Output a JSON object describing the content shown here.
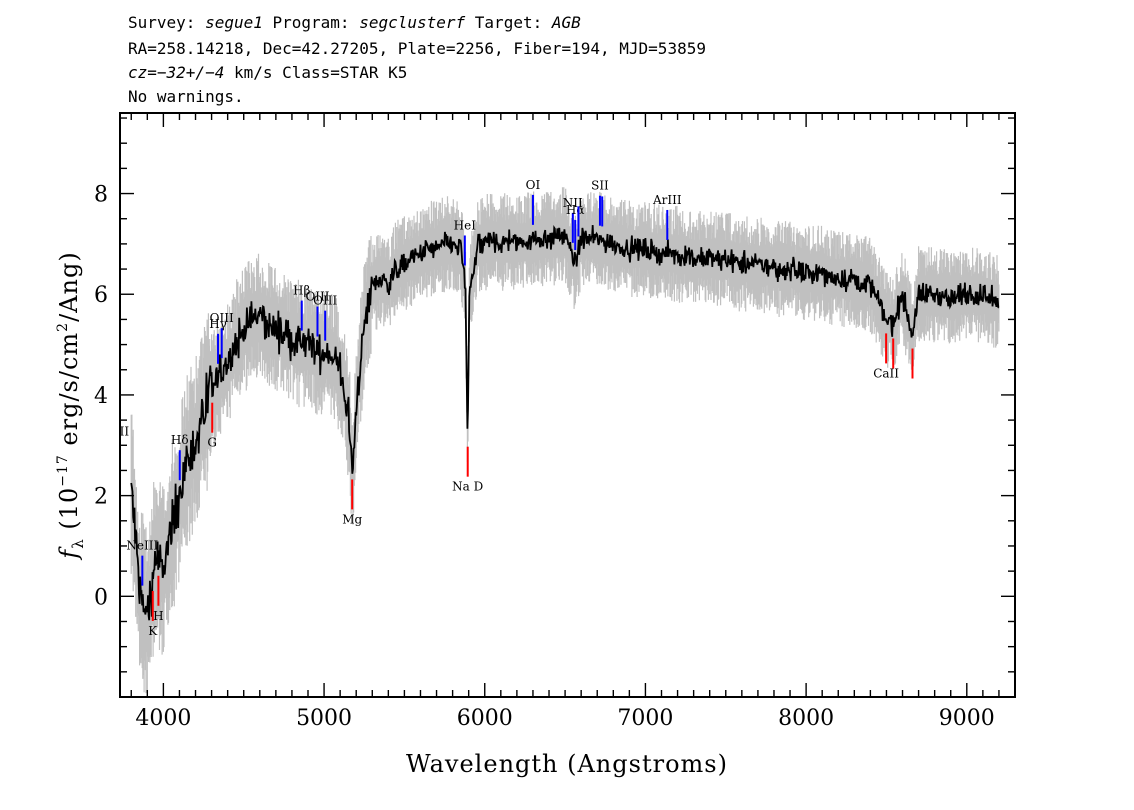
{
  "header": {
    "line1": {
      "p1": "Survey: ",
      "survey": "segue1",
      "p2": " Program: ",
      "program": "segclusterf",
      "p3": " Target: ",
      "target": "AGB"
    },
    "line2": "RA=258.14218, Dec=42.27205, Plate=2256, Fiber=194, MJD=53859",
    "line3": {
      "cz": "cz=−32+/−4",
      "rest": " km/s Class=STAR K5"
    },
    "line4": "No warnings."
  },
  "chart_data": {
    "type": "line",
    "xlabel": "Wavelength (Angstroms)",
    "ylabel": "f_λ (10^-17 erg/s/cm^2/Ang)",
    "xlim": [
      3730,
      9300
    ],
    "ylim": [
      -2.0,
      9.6
    ],
    "x_ticks": [
      4000,
      5000,
      6000,
      7000,
      8000,
      9000
    ],
    "y_ticks": [
      0,
      2,
      4,
      6,
      8
    ],
    "series": [
      {
        "role": "flux",
        "color": "#000000",
        "x": [
          3800,
          3850,
          3900,
          3950,
          4000,
          4050,
          4100,
          4150,
          4200,
          4250,
          4300,
          4350,
          4400,
          4450,
          4500,
          4550,
          4600,
          4650,
          4700,
          4750,
          4800,
          4850,
          4900,
          4950,
          5000,
          5050,
          5100,
          5150,
          5180,
          5200,
          5250,
          5300,
          5350,
          5400,
          5450,
          5500,
          5550,
          5600,
          5650,
          5700,
          5750,
          5800,
          5850,
          5880,
          5893,
          5905,
          5950,
          6000,
          6050,
          6100,
          6150,
          6200,
          6300,
          6400,
          6500,
          6563,
          6600,
          6700,
          6800,
          6900,
          7000,
          7100,
          7200,
          7300,
          7400,
          7500,
          7600,
          7700,
          7800,
          7900,
          8000,
          8100,
          8200,
          8300,
          8400,
          8498,
          8542,
          8600,
          8662,
          8700,
          8800,
          8900,
          9000,
          9100,
          9200
        ],
        "y": [
          2.2,
          0.2,
          -0.5,
          0.8,
          0.5,
          1.3,
          2.0,
          2.7,
          3.1,
          3.6,
          4.1,
          4.4,
          4.6,
          5.0,
          5.3,
          5.5,
          5.6,
          5.4,
          5.3,
          5.2,
          5.1,
          5.0,
          5.0,
          4.9,
          4.8,
          4.8,
          4.5,
          3.6,
          2.4,
          3.8,
          5.4,
          6.2,
          6.3,
          6.2,
          6.5,
          6.6,
          6.7,
          6.8,
          6.9,
          6.9,
          7.0,
          7.0,
          6.9,
          6.2,
          3.0,
          6.0,
          6.9,
          7.0,
          7.1,
          7.0,
          7.1,
          7.0,
          7.1,
          7.1,
          7.2,
          6.6,
          7.1,
          7.1,
          7.0,
          6.9,
          6.9,
          6.8,
          6.8,
          6.7,
          6.7,
          6.7,
          6.6,
          6.6,
          6.5,
          6.5,
          6.4,
          6.4,
          6.3,
          6.3,
          6.2,
          5.5,
          5.4,
          6.0,
          5.2,
          6.0,
          6.0,
          5.9,
          6.0,
          6.0,
          5.8
        ]
      },
      {
        "role": "error band",
        "color": "#c0c0c0"
      }
    ],
    "emission_lines": [
      {
        "label": "OII",
        "x": 3727,
        "color": "#0000ff"
      },
      {
        "label": "NeIII",
        "x": 3869,
        "color": "#0000ff"
      },
      {
        "label": "Hδ",
        "x": 4102,
        "color": "#0000ff"
      },
      {
        "label": "Hγ",
        "x": 4340,
        "color": "#0000ff"
      },
      {
        "label": "OIII",
        "x": 4363,
        "color": "#0000ff"
      },
      {
        "label": "Hβ",
        "x": 4861,
        "color": "#0000ff"
      },
      {
        "label": "OIII",
        "x": 4959,
        "color": "#0000ff"
      },
      {
        "label": "OIII",
        "x": 5007,
        "color": "#0000ff"
      },
      {
        "label": "HeI",
        "x": 5876,
        "color": "#0000ff"
      },
      {
        "label": "OI",
        "x": 6300,
        "color": "#0000ff"
      },
      {
        "label": "NII",
        "x": 6548,
        "color": "#0000ff"
      },
      {
        "label": "Hα",
        "x": 6563,
        "color": "#0000ff"
      },
      {
        "label": "NII",
        "x": 6583,
        "color": "#0000ff"
      },
      {
        "label": "SII",
        "x": 6717,
        "color": "#0000ff"
      },
      {
        "label": "SII",
        "x": 6731,
        "color": "#0000ff"
      },
      {
        "label": "ArIII",
        "x": 7136,
        "color": "#0000ff"
      }
    ],
    "absorption_lines": [
      {
        "label": "K",
        "x": 3934,
        "color": "#ff0000"
      },
      {
        "label": "H",
        "x": 3969,
        "color": "#ff0000"
      },
      {
        "label": "G",
        "x": 4304,
        "color": "#ff0000"
      },
      {
        "label": "Mg",
        "x": 5175,
        "color": "#ff0000"
      },
      {
        "label": "Na D",
        "x": 5894,
        "color": "#ff0000"
      },
      {
        "label": "CaII",
        "x": 8498,
        "color": "#ff0000"
      },
      {
        "label": "CaII",
        "x": 8542,
        "color": "#ff0000"
      },
      {
        "label": "CaII",
        "x": 8662,
        "color": "#ff0000"
      }
    ]
  }
}
